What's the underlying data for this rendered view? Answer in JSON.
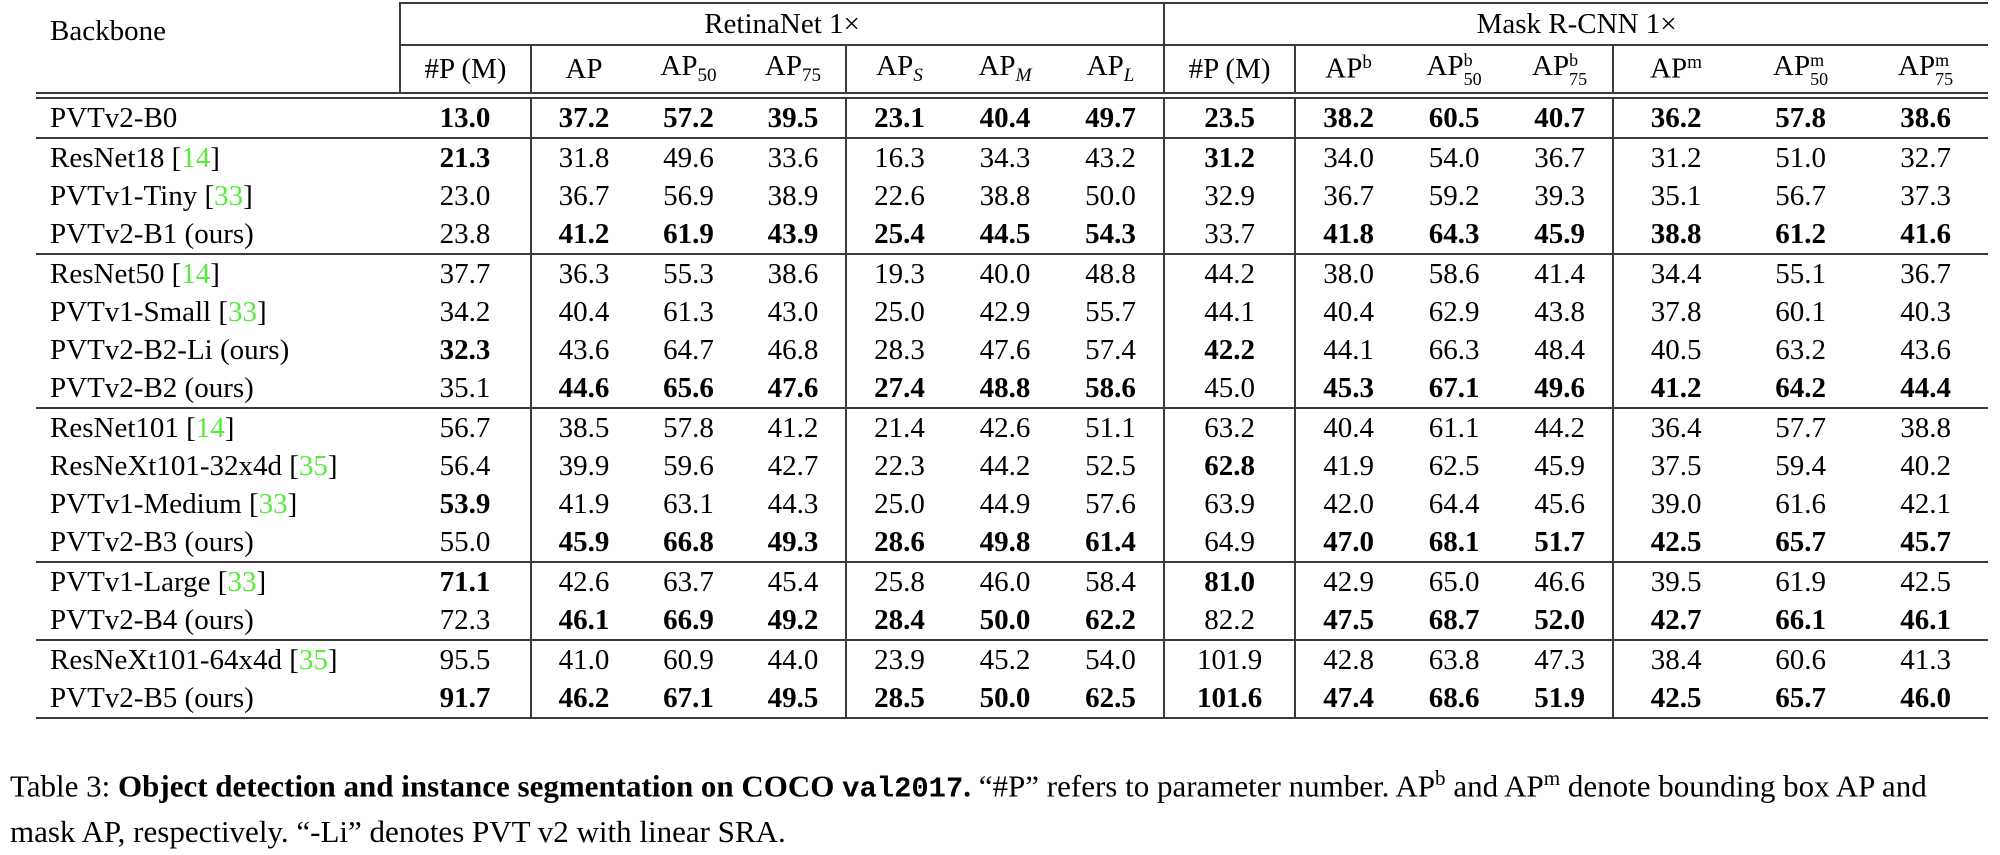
{
  "colors": {
    "citation_green": "#59ea3e",
    "rule_gray": "#3a3a3a",
    "text": "#000000",
    "background": "#ffffff"
  },
  "table": {
    "header": {
      "backbone": "Backbone",
      "groups": [
        {
          "label": "RetinaNet 1×"
        },
        {
          "label": "Mask R-CNN 1×"
        }
      ]
    },
    "sub_headers": [
      {
        "base": "#P (M)"
      },
      {
        "base": "AP"
      },
      {
        "base": "AP",
        "sub": "50"
      },
      {
        "base": "AP",
        "sub": "75"
      },
      {
        "base": "AP",
        "sub": "S",
        "ital": true
      },
      {
        "base": "AP",
        "sub": "M",
        "ital": true
      },
      {
        "base": "AP",
        "sub": "L",
        "ital": true
      },
      {
        "base": "#P (M)"
      },
      {
        "base": "AP",
        "sup": "b"
      },
      {
        "base": "AP",
        "sup": "b",
        "sub": "50"
      },
      {
        "base": "AP",
        "sup": "b",
        "sub": "75"
      },
      {
        "base": "AP",
        "sup": "m"
      },
      {
        "base": "AP",
        "sup": "m",
        "sub": "50"
      },
      {
        "base": "AP",
        "sup": "m",
        "sub": "75"
      }
    ],
    "rows": [
      {
        "label": "PVTv2-B0",
        "cite": null,
        "separator_after": true,
        "values": [
          "13.0",
          "37.2",
          "57.2",
          "39.5",
          "23.1",
          "40.4",
          "49.7",
          "23.5",
          "38.2",
          "60.5",
          "40.7",
          "36.2",
          "57.8",
          "38.6"
        ],
        "bold": [
          1,
          1,
          1,
          1,
          1,
          1,
          1,
          1,
          1,
          1,
          1,
          1,
          1,
          1
        ]
      },
      {
        "label": "ResNet18",
        "cite": "14",
        "separator_after": false,
        "values": [
          "21.3",
          "31.8",
          "49.6",
          "33.6",
          "16.3",
          "34.3",
          "43.2",
          "31.2",
          "34.0",
          "54.0",
          "36.7",
          "31.2",
          "51.0",
          "32.7"
        ],
        "bold": [
          1,
          0,
          0,
          0,
          0,
          0,
          0,
          1,
          0,
          0,
          0,
          0,
          0,
          0
        ]
      },
      {
        "label": "PVTv1-Tiny",
        "cite": "33",
        "separator_after": false,
        "values": [
          "23.0",
          "36.7",
          "56.9",
          "38.9",
          "22.6",
          "38.8",
          "50.0",
          "32.9",
          "36.7",
          "59.2",
          "39.3",
          "35.1",
          "56.7",
          "37.3"
        ],
        "bold": [
          0,
          0,
          0,
          0,
          0,
          0,
          0,
          0,
          0,
          0,
          0,
          0,
          0,
          0
        ]
      },
      {
        "label": "PVTv2-B1 (ours)",
        "cite": null,
        "separator_after": true,
        "values": [
          "23.8",
          "41.2",
          "61.9",
          "43.9",
          "25.4",
          "44.5",
          "54.3",
          "33.7",
          "41.8",
          "64.3",
          "45.9",
          "38.8",
          "61.2",
          "41.6"
        ],
        "bold": [
          0,
          1,
          1,
          1,
          1,
          1,
          1,
          0,
          1,
          1,
          1,
          1,
          1,
          1
        ]
      },
      {
        "label": "ResNet50",
        "cite": "14",
        "separator_after": false,
        "values": [
          "37.7",
          "36.3",
          "55.3",
          "38.6",
          "19.3",
          "40.0",
          "48.8",
          "44.2",
          "38.0",
          "58.6",
          "41.4",
          "34.4",
          "55.1",
          "36.7"
        ],
        "bold": [
          0,
          0,
          0,
          0,
          0,
          0,
          0,
          0,
          0,
          0,
          0,
          0,
          0,
          0
        ]
      },
      {
        "label": "PVTv1-Small",
        "cite": "33",
        "separator_after": false,
        "values": [
          "34.2",
          "40.4",
          "61.3",
          "43.0",
          "25.0",
          "42.9",
          "55.7",
          "44.1",
          "40.4",
          "62.9",
          "43.8",
          "37.8",
          "60.1",
          "40.3"
        ],
        "bold": [
          0,
          0,
          0,
          0,
          0,
          0,
          0,
          0,
          0,
          0,
          0,
          0,
          0,
          0
        ]
      },
      {
        "label": "PVTv2-B2-Li (ours)",
        "cite": null,
        "separator_after": false,
        "values": [
          "32.3",
          "43.6",
          "64.7",
          "46.8",
          "28.3",
          "47.6",
          "57.4",
          "42.2",
          "44.1",
          "66.3",
          "48.4",
          "40.5",
          "63.2",
          "43.6"
        ],
        "bold": [
          1,
          0,
          0,
          0,
          0,
          0,
          0,
          1,
          0,
          0,
          0,
          0,
          0,
          0
        ]
      },
      {
        "label": "PVTv2-B2 (ours)",
        "cite": null,
        "separator_after": true,
        "values": [
          "35.1",
          "44.6",
          "65.6",
          "47.6",
          "27.4",
          "48.8",
          "58.6",
          "45.0",
          "45.3",
          "67.1",
          "49.6",
          "41.2",
          "64.2",
          "44.4"
        ],
        "bold": [
          0,
          1,
          1,
          1,
          1,
          1,
          1,
          0,
          1,
          1,
          1,
          1,
          1,
          1
        ]
      },
      {
        "label": "ResNet101",
        "cite": "14",
        "separator_after": false,
        "values": [
          "56.7",
          "38.5",
          "57.8",
          "41.2",
          "21.4",
          "42.6",
          "51.1",
          "63.2",
          "40.4",
          "61.1",
          "44.2",
          "36.4",
          "57.7",
          "38.8"
        ],
        "bold": [
          0,
          0,
          0,
          0,
          0,
          0,
          0,
          0,
          0,
          0,
          0,
          0,
          0,
          0
        ]
      },
      {
        "label": "ResNeXt101-32x4d",
        "cite": "35",
        "separator_after": false,
        "values": [
          "56.4",
          "39.9",
          "59.6",
          "42.7",
          "22.3",
          "44.2",
          "52.5",
          "62.8",
          "41.9",
          "62.5",
          "45.9",
          "37.5",
          "59.4",
          "40.2"
        ],
        "bold": [
          0,
          0,
          0,
          0,
          0,
          0,
          0,
          1,
          0,
          0,
          0,
          0,
          0,
          0
        ]
      },
      {
        "label": "PVTv1-Medium",
        "cite": "33",
        "separator_after": false,
        "values": [
          "53.9",
          "41.9",
          "63.1",
          "44.3",
          "25.0",
          "44.9",
          "57.6",
          "63.9",
          "42.0",
          "64.4",
          "45.6",
          "39.0",
          "61.6",
          "42.1"
        ],
        "bold": [
          1,
          0,
          0,
          0,
          0,
          0,
          0,
          0,
          0,
          0,
          0,
          0,
          0,
          0
        ]
      },
      {
        "label": "PVTv2-B3 (ours)",
        "cite": null,
        "separator_after": true,
        "values": [
          "55.0",
          "45.9",
          "66.8",
          "49.3",
          "28.6",
          "49.8",
          "61.4",
          "64.9",
          "47.0",
          "68.1",
          "51.7",
          "42.5",
          "65.7",
          "45.7"
        ],
        "bold": [
          0,
          1,
          1,
          1,
          1,
          1,
          1,
          0,
          1,
          1,
          1,
          1,
          1,
          1
        ]
      },
      {
        "label": "PVTv1-Large",
        "cite": "33",
        "separator_after": false,
        "values": [
          "71.1",
          "42.6",
          "63.7",
          "45.4",
          "25.8",
          "46.0",
          "58.4",
          "81.0",
          "42.9",
          "65.0",
          "46.6",
          "39.5",
          "61.9",
          "42.5"
        ],
        "bold": [
          1,
          0,
          0,
          0,
          0,
          0,
          0,
          1,
          0,
          0,
          0,
          0,
          0,
          0
        ]
      },
      {
        "label": "PVTv2-B4 (ours)",
        "cite": null,
        "separator_after": true,
        "values": [
          "72.3",
          "46.1",
          "66.9",
          "49.2",
          "28.4",
          "50.0",
          "62.2",
          "82.2",
          "47.5",
          "68.7",
          "52.0",
          "42.7",
          "66.1",
          "46.1"
        ],
        "bold": [
          0,
          1,
          1,
          1,
          1,
          1,
          1,
          0,
          1,
          1,
          1,
          1,
          1,
          1
        ]
      },
      {
        "label": "ResNeXt101-64x4d",
        "cite": "35",
        "separator_after": false,
        "values": [
          "95.5",
          "41.0",
          "60.9",
          "44.0",
          "23.9",
          "45.2",
          "54.0",
          "101.9",
          "42.8",
          "63.8",
          "47.3",
          "38.4",
          "60.6",
          "41.3"
        ],
        "bold": [
          0,
          0,
          0,
          0,
          0,
          0,
          0,
          0,
          0,
          0,
          0,
          0,
          0,
          0
        ]
      },
      {
        "label": "PVTv2-B5 (ours)",
        "cite": null,
        "separator_after": false,
        "values": [
          "91.7",
          "46.2",
          "67.1",
          "49.5",
          "28.5",
          "50.0",
          "62.5",
          "101.6",
          "47.4",
          "68.6",
          "51.9",
          "42.5",
          "65.7",
          "46.0"
        ],
        "bold": [
          1,
          1,
          1,
          1,
          1,
          1,
          1,
          1,
          1,
          1,
          1,
          1,
          1,
          1
        ]
      }
    ]
  },
  "caption": {
    "segments": [
      {
        "t": "Table 3: "
      },
      {
        "t": "Object detection and instance segmentation on COCO ",
        "b": 1
      },
      {
        "t": "val2017",
        "b": 1,
        "mono": 1
      },
      {
        "t": ".",
        "b": 1
      },
      {
        "t": " “#P” refers to parameter number. AP"
      },
      {
        "t": "b",
        "sup": 1
      },
      {
        "t": " and AP"
      },
      {
        "t": "m",
        "sup": 1
      },
      {
        "t": " denote bounding box AP and mask AP, respectively. “-Li” denotes PVT v2 with linear SRA."
      }
    ]
  }
}
